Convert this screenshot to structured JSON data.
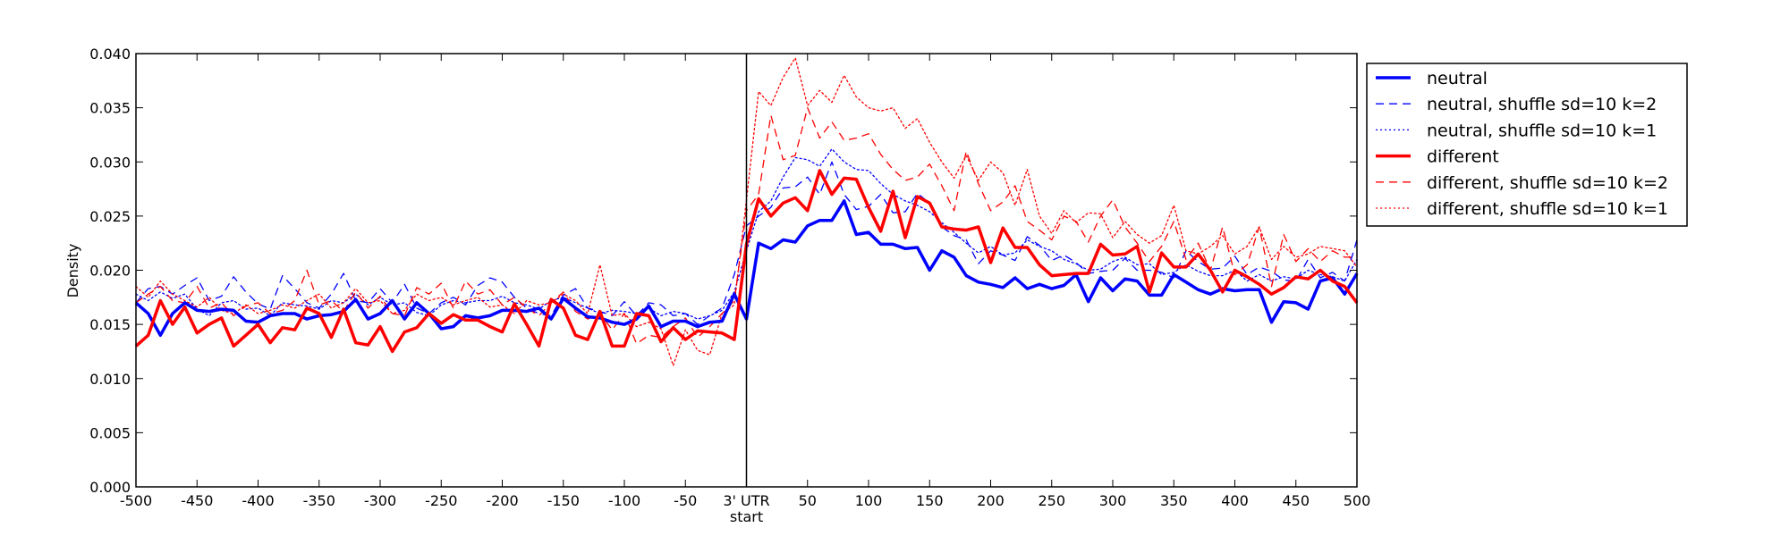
{
  "chart_data": {
    "type": "line",
    "xlabel": "",
    "ylabel": "Density",
    "xlim": [
      -500,
      500
    ],
    "ylim": [
      0,
      0.04
    ],
    "x_ticks": [
      {
        "value": -500,
        "label": "-500"
      },
      {
        "value": -450,
        "label": "-450"
      },
      {
        "value": -400,
        "label": "-400"
      },
      {
        "value": -350,
        "label": "-350"
      },
      {
        "value": -300,
        "label": "-300"
      },
      {
        "value": -250,
        "label": "-250"
      },
      {
        "value": -200,
        "label": "-200"
      },
      {
        "value": -150,
        "label": "-150"
      },
      {
        "value": -100,
        "label": "-100"
      },
      {
        "value": -50,
        "label": "-50"
      },
      {
        "value": 0,
        "label": "3' UTR"
      },
      {
        "value": 50,
        "label": "50"
      },
      {
        "value": 100,
        "label": "100"
      },
      {
        "value": 150,
        "label": "150"
      },
      {
        "value": 200,
        "label": "200"
      },
      {
        "value": 250,
        "label": "250"
      },
      {
        "value": 300,
        "label": "300"
      },
      {
        "value": 350,
        "label": "350"
      },
      {
        "value": 400,
        "label": "400"
      },
      {
        "value": 450,
        "label": "450"
      },
      {
        "value": 500,
        "label": "500"
      }
    ],
    "x_sublabel": {
      "value": 0,
      "label": "start"
    },
    "y_ticks": [
      {
        "value": 0,
        "label": "0.000"
      },
      {
        "value": 0.005,
        "label": "0.005"
      },
      {
        "value": 0.01,
        "label": "0.010"
      },
      {
        "value": 0.015,
        "label": "0.015"
      },
      {
        "value": 0.02,
        "label": "0.020"
      },
      {
        "value": 0.025,
        "label": "0.025"
      },
      {
        "value": 0.03,
        "label": "0.030"
      },
      {
        "value": 0.035,
        "label": "0.035"
      },
      {
        "value": 0.04,
        "label": "0.040"
      }
    ],
    "vline": 0,
    "grid": false,
    "legend_position": "outside-right-top",
    "x": [
      -500,
      -490,
      -480,
      -470,
      -460,
      -450,
      -440,
      -430,
      -420,
      -410,
      -400,
      -390,
      -380,
      -370,
      -360,
      -350,
      -340,
      -330,
      -320,
      -310,
      -300,
      -290,
      -280,
      -270,
      -260,
      -250,
      -240,
      -230,
      -220,
      -210,
      -200,
      -190,
      -180,
      -170,
      -160,
      -150,
      -140,
      -130,
      -120,
      -110,
      -100,
      -90,
      -80,
      -70,
      -60,
      -50,
      -40,
      -30,
      -20,
      -10,
      0,
      10,
      20,
      30,
      40,
      50,
      60,
      70,
      80,
      90,
      100,
      110,
      120,
      130,
      140,
      150,
      160,
      170,
      180,
      190,
      200,
      210,
      220,
      230,
      240,
      250,
      260,
      270,
      280,
      290,
      300,
      310,
      320,
      330,
      340,
      350,
      360,
      370,
      380,
      390,
      400,
      410,
      420,
      430,
      440,
      450,
      460,
      470,
      480,
      490,
      500
    ],
    "series": [
      {
        "name": "neutral",
        "color": "#0000ff",
        "style": "solid",
        "width": 3.5,
        "values": [
          0.017,
          0.016,
          0.014,
          0.016,
          0.017,
          0.0163,
          0.0162,
          0.0164,
          0.0163,
          0.0153,
          0.0152,
          0.0158,
          0.016,
          0.016,
          0.0155,
          0.0158,
          0.0159,
          0.0162,
          0.0173,
          0.0155,
          0.016,
          0.0172,
          0.0155,
          0.017,
          0.016,
          0.0146,
          0.0148,
          0.0158,
          0.0156,
          0.0158,
          0.0163,
          0.0163,
          0.0162,
          0.0165,
          0.0155,
          0.0174,
          0.0165,
          0.0157,
          0.0156,
          0.0152,
          0.015,
          0.0155,
          0.0167,
          0.0148,
          0.0153,
          0.0153,
          0.0148,
          0.0152,
          0.0153,
          0.0178,
          0.0155,
          0.0225,
          0.022,
          0.0228,
          0.0226,
          0.0241,
          0.0246,
          0.0246,
          0.0264,
          0.0233,
          0.0235,
          0.0224,
          0.0224,
          0.022,
          0.0221,
          0.02,
          0.0218,
          0.0212,
          0.0195,
          0.0189,
          0.0187,
          0.0184,
          0.0193,
          0.0183,
          0.0187,
          0.0183,
          0.0186,
          0.0196,
          0.0171,
          0.0193,
          0.0181,
          0.0192,
          0.019,
          0.0177,
          0.0177,
          0.0196,
          0.0189,
          0.0182,
          0.0178,
          0.0183,
          0.0181,
          0.0182,
          0.0182,
          0.0152,
          0.0171,
          0.017,
          0.0164,
          0.019,
          0.0193,
          0.0178,
          0.0197
        ]
      },
      {
        "name": "neutral, shuffle sd=10 k=2",
        "color": "#0000ff",
        "style": "dashed",
        "width": 1.3,
        "values": [
          0.017,
          0.0183,
          0.0185,
          0.0178,
          0.0186,
          0.0193,
          0.0172,
          0.0176,
          0.0194,
          0.018,
          0.0169,
          0.0164,
          0.0195,
          0.0183,
          0.017,
          0.0165,
          0.0178,
          0.0197,
          0.0172,
          0.017,
          0.0183,
          0.017,
          0.0187,
          0.0165,
          0.016,
          0.017,
          0.0175,
          0.0168,
          0.0186,
          0.0193,
          0.0189,
          0.0175,
          0.0165,
          0.016,
          0.0158,
          0.0177,
          0.0183,
          0.0165,
          0.0162,
          0.0158,
          0.0171,
          0.0158,
          0.017,
          0.0168,
          0.0158,
          0.016,
          0.015,
          0.0158,
          0.0165,
          0.0196,
          0.0241,
          0.025,
          0.0258,
          0.0276,
          0.0277,
          0.0286,
          0.027,
          0.03,
          0.027,
          0.0256,
          0.0259,
          0.027,
          0.0253,
          0.0254,
          0.0271,
          0.0262,
          0.024,
          0.0232,
          0.0228,
          0.0206,
          0.0218,
          0.0214,
          0.0209,
          0.0231,
          0.0223,
          0.0209,
          0.0214,
          0.0207,
          0.0197,
          0.0199,
          0.02,
          0.0211,
          0.02,
          0.02,
          0.0198,
          0.0193,
          0.0218,
          0.0208,
          0.0201,
          0.0202,
          0.0213,
          0.0196,
          0.0203,
          0.0199,
          0.0191,
          0.019,
          0.021,
          0.0193,
          0.0198,
          0.019,
          0.0228
        ]
      },
      {
        "name": "neutral, shuffle sd=10 k=1",
        "color": "#0000ff",
        "style": "dotted",
        "width": 1.3,
        "values": [
          0.0178,
          0.0172,
          0.018,
          0.0174,
          0.0178,
          0.0164,
          0.0158,
          0.017,
          0.0172,
          0.0164,
          0.0165,
          0.0158,
          0.017,
          0.0168,
          0.0167,
          0.0164,
          0.0172,
          0.017,
          0.0178,
          0.0168,
          0.0175,
          0.0168,
          0.017,
          0.0161,
          0.0158,
          0.0168,
          0.0172,
          0.017,
          0.0172,
          0.0172,
          0.0176,
          0.017,
          0.0168,
          0.0164,
          0.0172,
          0.0175,
          0.017,
          0.0165,
          0.016,
          0.0163,
          0.0162,
          0.016,
          0.0165,
          0.0158,
          0.0162,
          0.016,
          0.0155,
          0.0158,
          0.0163,
          0.018,
          0.0218,
          0.0254,
          0.0264,
          0.0286,
          0.0304,
          0.0302,
          0.0296,
          0.0312,
          0.03,
          0.0293,
          0.0292,
          0.028,
          0.027,
          0.0264,
          0.026,
          0.0254,
          0.0244,
          0.0235,
          0.0225,
          0.0216,
          0.0222,
          0.0214,
          0.0216,
          0.0228,
          0.0222,
          0.0218,
          0.021,
          0.0206,
          0.02,
          0.0201,
          0.0208,
          0.0212,
          0.0205,
          0.0206,
          0.0196,
          0.0198,
          0.0205,
          0.0199,
          0.0195,
          0.0195,
          0.02,
          0.019,
          0.0196,
          0.019,
          0.0194,
          0.0192,
          0.02,
          0.0196,
          0.0194,
          0.019,
          0.021
        ]
      },
      {
        "name": "different",
        "color": "#ff0000",
        "style": "solid",
        "width": 3.5,
        "values": [
          0.013,
          0.014,
          0.0172,
          0.015,
          0.0166,
          0.0142,
          0.015,
          0.0156,
          0.013,
          0.014,
          0.015,
          0.0133,
          0.0147,
          0.0145,
          0.0165,
          0.016,
          0.0138,
          0.0164,
          0.0133,
          0.0131,
          0.0148,
          0.0125,
          0.0143,
          0.0147,
          0.016,
          0.0151,
          0.0159,
          0.0154,
          0.0154,
          0.0148,
          0.0143,
          0.0169,
          0.015,
          0.013,
          0.0173,
          0.0165,
          0.014,
          0.0136,
          0.0162,
          0.013,
          0.013,
          0.016,
          0.0158,
          0.0134,
          0.0147,
          0.0136,
          0.0144,
          0.0143,
          0.0142,
          0.0136,
          0.0224,
          0.0266,
          0.025,
          0.0262,
          0.0267,
          0.0255,
          0.0292,
          0.027,
          0.0285,
          0.0284,
          0.0258,
          0.0236,
          0.0273,
          0.023,
          0.0268,
          0.0262,
          0.024,
          0.0238,
          0.0237,
          0.024,
          0.0207,
          0.0239,
          0.0221,
          0.0221,
          0.0205,
          0.0195,
          0.0196,
          0.0197,
          0.0197,
          0.0224,
          0.0214,
          0.0215,
          0.0222,
          0.018,
          0.0216,
          0.0203,
          0.0203,
          0.0215,
          0.02,
          0.018,
          0.02,
          0.0194,
          0.0187,
          0.0178,
          0.0184,
          0.0194,
          0.0192,
          0.02,
          0.019,
          0.0185,
          0.017
        ]
      },
      {
        "name": "different, shuffle sd=10 k=2",
        "color": "#ff0000",
        "style": "dashed",
        "width": 1.3,
        "values": [
          0.017,
          0.0178,
          0.0185,
          0.0172,
          0.017,
          0.0185,
          0.0165,
          0.017,
          0.0158,
          0.0167,
          0.017,
          0.016,
          0.0163,
          0.0172,
          0.02,
          0.0168,
          0.0172,
          0.0162,
          0.018,
          0.0165,
          0.0176,
          0.016,
          0.0158,
          0.0184,
          0.0178,
          0.0188,
          0.0165,
          0.019,
          0.0178,
          0.0182,
          0.0168,
          0.0175,
          0.0165,
          0.0158,
          0.017,
          0.018,
          0.0162,
          0.0155,
          0.016,
          0.0145,
          0.016,
          0.0132,
          0.014,
          0.0138,
          0.0148,
          0.0156,
          0.0138,
          0.0148,
          0.016,
          0.0172,
          0.0255,
          0.027,
          0.0343,
          0.0302,
          0.0306,
          0.035,
          0.0322,
          0.0337,
          0.032,
          0.0322,
          0.0326,
          0.0307,
          0.0293,
          0.0283,
          0.0286,
          0.0298,
          0.0278,
          0.0255,
          0.031,
          0.028,
          0.0255,
          0.0263,
          0.0278,
          0.0245,
          0.0237,
          0.0228,
          0.025,
          0.0245,
          0.0226,
          0.025,
          0.0265,
          0.024,
          0.0225,
          0.0208,
          0.0222,
          0.0245,
          0.021,
          0.0225,
          0.02,
          0.024,
          0.0196,
          0.0205,
          0.024,
          0.0185,
          0.0233,
          0.0208,
          0.022,
          0.0208,
          0.0218,
          0.0212,
          0.0212
        ]
      },
      {
        "name": "different, shuffle sd=10 k=1",
        "color": "#ff0000",
        "style": "dotted",
        "width": 1.3,
        "values": [
          0.0185,
          0.0175,
          0.019,
          0.0178,
          0.0172,
          0.0166,
          0.0175,
          0.0163,
          0.016,
          0.0168,
          0.016,
          0.0163,
          0.0168,
          0.0165,
          0.0172,
          0.0178,
          0.0165,
          0.017,
          0.0183,
          0.017,
          0.0172,
          0.016,
          0.0163,
          0.0178,
          0.0172,
          0.0175,
          0.0168,
          0.0172,
          0.0175,
          0.0166,
          0.0168,
          0.016,
          0.0172,
          0.0168,
          0.017,
          0.0178,
          0.0172,
          0.016,
          0.0205,
          0.0158,
          0.016,
          0.0148,
          0.0152,
          0.0146,
          0.0112,
          0.0145,
          0.0126,
          0.0122,
          0.016,
          0.0168,
          0.0265,
          0.0365,
          0.0352,
          0.0378,
          0.0396,
          0.0352,
          0.0366,
          0.0355,
          0.038,
          0.036,
          0.035,
          0.0347,
          0.035,
          0.0331,
          0.034,
          0.0318,
          0.03,
          0.0285,
          0.0306,
          0.0283,
          0.03,
          0.029,
          0.026,
          0.0293,
          0.025,
          0.0234,
          0.0255,
          0.0244,
          0.0253,
          0.0252,
          0.023,
          0.0245,
          0.0233,
          0.0225,
          0.0232,
          0.026,
          0.0218,
          0.0215,
          0.0222,
          0.0232,
          0.0215,
          0.0222,
          0.024,
          0.021,
          0.0222,
          0.0212,
          0.0215,
          0.0222,
          0.022,
          0.0218,
          0.0203
        ]
      }
    ]
  }
}
